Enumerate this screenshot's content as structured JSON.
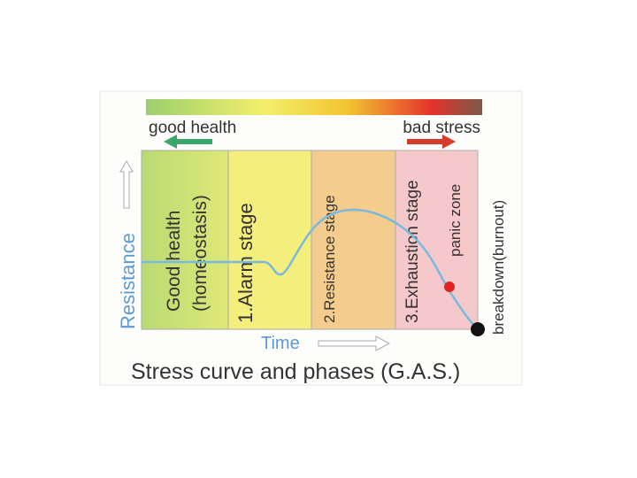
{
  "header": {
    "left_label": "good health",
    "right_label": "bad stress"
  },
  "axis": {
    "y_label": "Resistance",
    "x_label": "Time"
  },
  "panels": [
    {
      "lines": [
        "Good health",
        "(homeostasis)"
      ]
    },
    {
      "lines": [
        "1.Alarm stage"
      ]
    },
    {
      "lines": [
        "2.Resistance stage"
      ]
    },
    {
      "lines": [
        "3.Exhaustion stage"
      ],
      "sublabel": "panic zone"
    }
  ],
  "end_label": "breakdown(burnout)",
  "caption": "Stress curve and phases (G.A.S.)"
}
